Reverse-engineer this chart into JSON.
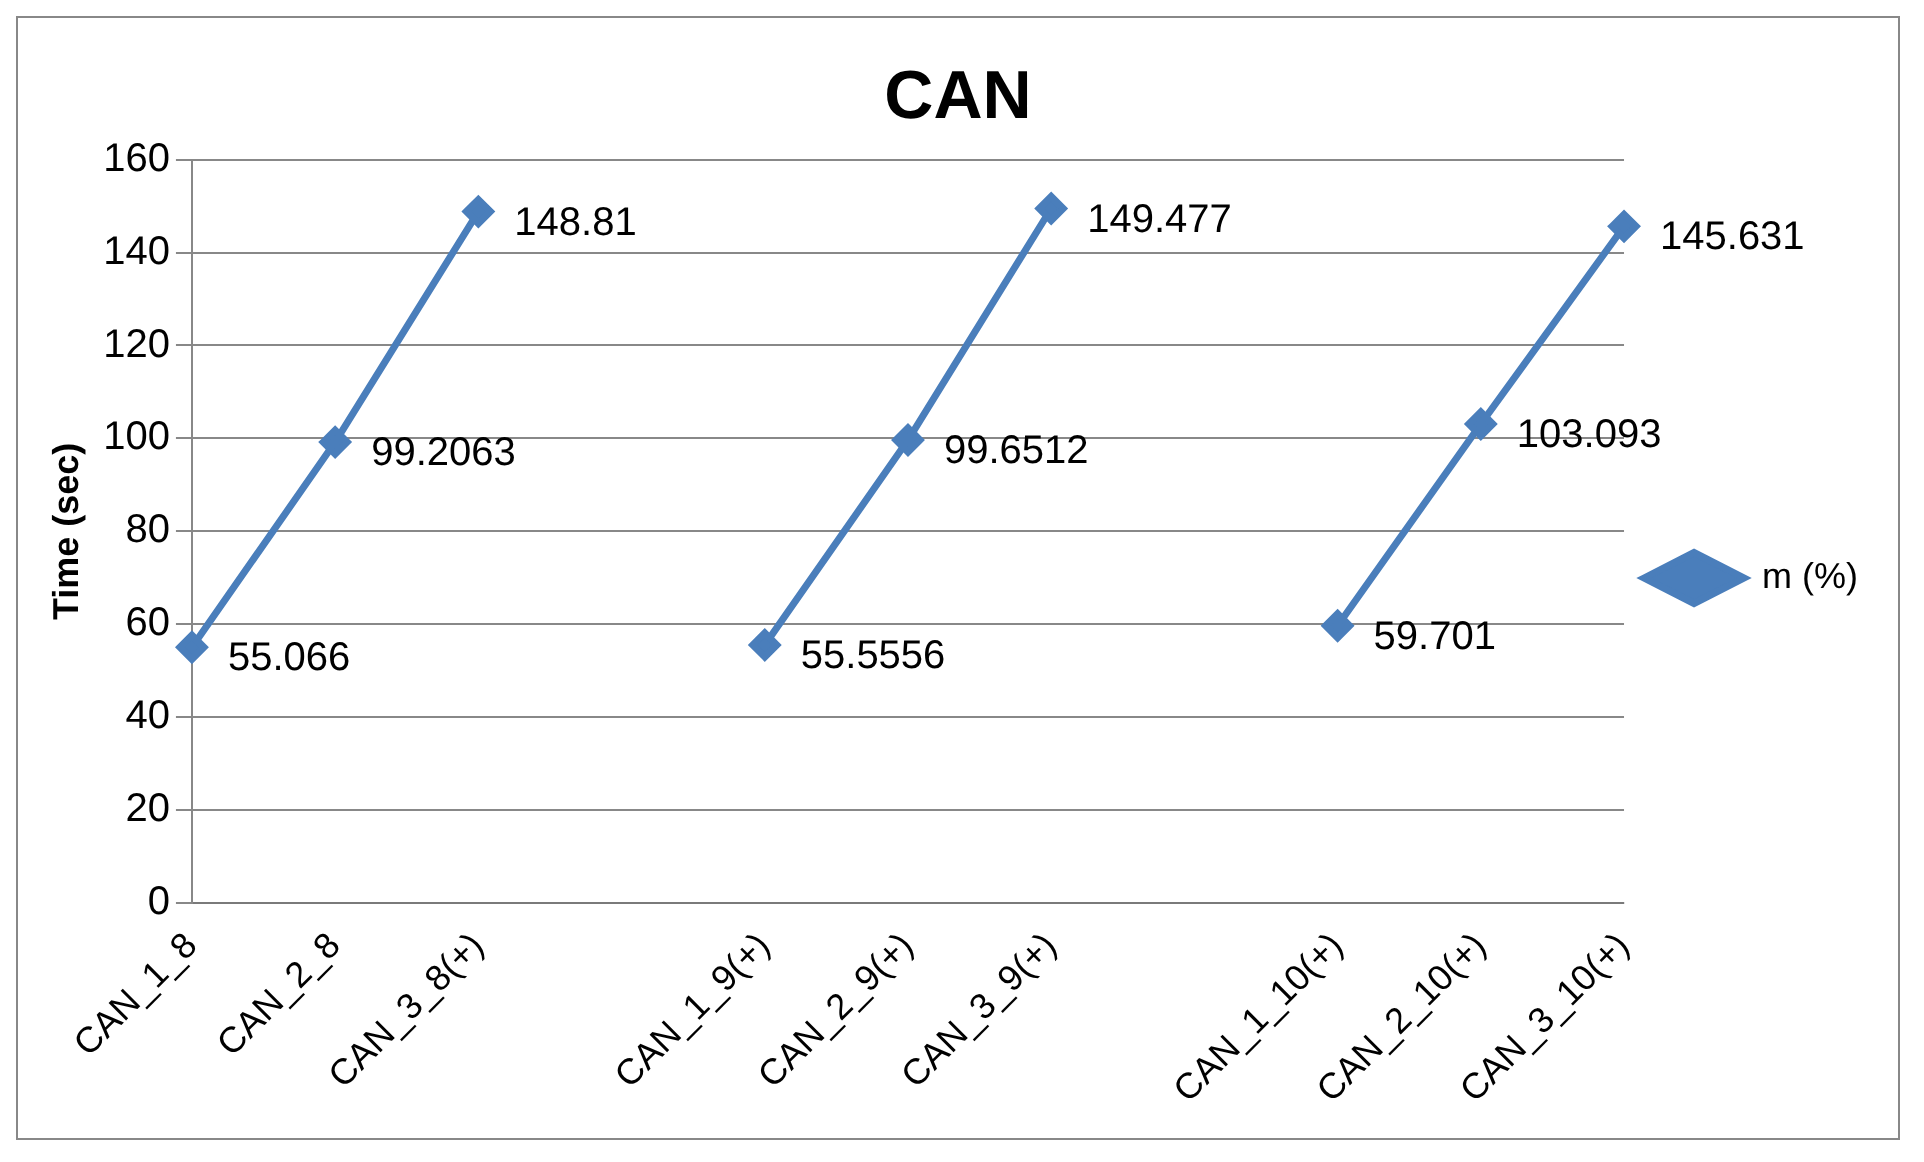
{
  "chart_data": {
    "type": "line",
    "title": "CAN",
    "ylabel": "Time (sec)",
    "categories": [
      "CAN_1_8",
      "CAN_2_8",
      "CAN_3_8(+)",
      null,
      "CAN_1_9(+)",
      "CAN_2_9(+)",
      "CAN_3_9(+)",
      null,
      "CAN_1_10(+)",
      "CAN_2_10(+)",
      "CAN_3_10(+)"
    ],
    "series": [
      {
        "name": "m (%)",
        "color": "#4a7ebb",
        "values": [
          55.066,
          99.2063,
          148.81,
          null,
          55.5556,
          99.6512,
          149.477,
          null,
          59.701,
          103.093,
          145.631
        ]
      }
    ],
    "ylim": [
      0,
      160
    ],
    "yticks": [
      0,
      20,
      40,
      60,
      80,
      100,
      120,
      140,
      160
    ],
    "grid": "y",
    "legend": "right",
    "marker": "diamond",
    "data_labels": true
  }
}
